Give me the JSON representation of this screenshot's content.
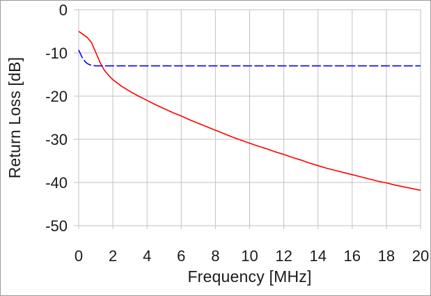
{
  "chart_data": {
    "type": "line",
    "title": "",
    "xlabel": "Frequency [MHz]",
    "ylabel": "Return Loss [dB]",
    "xlim": [
      0,
      20
    ],
    "ylim": [
      -50,
      0
    ],
    "x_ticks": [
      0,
      2,
      4,
      6,
      8,
      10,
      12,
      14,
      16,
      18,
      20
    ],
    "y_ticks": [
      0,
      -10,
      -20,
      -30,
      -40,
      -50
    ],
    "grid": true,
    "legend_position": "none",
    "series": [
      {
        "name": "red",
        "color": "#ff0000",
        "style": "solid",
        "points": [
          [
            0,
            -5.0
          ],
          [
            0.25,
            -5.7
          ],
          [
            0.5,
            -6.4
          ],
          [
            0.75,
            -7.6
          ],
          [
            1,
            -9.9
          ],
          [
            1.25,
            -12.2
          ],
          [
            1.5,
            -14.0
          ],
          [
            1.75,
            -15.2
          ],
          [
            2,
            -16.2
          ],
          [
            2.5,
            -17.7
          ],
          [
            3,
            -18.9
          ],
          [
            3.5,
            -20.0
          ],
          [
            4,
            -21.0
          ],
          [
            4.5,
            -22.0
          ],
          [
            5,
            -22.9
          ],
          [
            5.5,
            -23.8
          ],
          [
            6,
            -24.6
          ],
          [
            6.5,
            -25.5
          ],
          [
            7,
            -26.3
          ],
          [
            7.5,
            -27.1
          ],
          [
            8,
            -27.9
          ],
          [
            8.5,
            -28.7
          ],
          [
            9,
            -29.5
          ],
          [
            9.5,
            -30.2
          ],
          [
            10,
            -30.9
          ],
          [
            10.5,
            -31.6
          ],
          [
            11,
            -32.2
          ],
          [
            11.5,
            -32.9
          ],
          [
            12,
            -33.5
          ],
          [
            12.5,
            -34.2
          ],
          [
            13,
            -34.8
          ],
          [
            13.5,
            -35.5
          ],
          [
            14,
            -36.1
          ],
          [
            14.5,
            -36.7
          ],
          [
            15,
            -37.2
          ],
          [
            15.5,
            -37.7
          ],
          [
            16,
            -38.2
          ],
          [
            16.5,
            -38.7
          ],
          [
            17,
            -39.2
          ],
          [
            17.5,
            -39.7
          ],
          [
            18,
            -40.1
          ],
          [
            18.5,
            -40.6
          ],
          [
            19,
            -41.0
          ],
          [
            19.5,
            -41.4
          ],
          [
            20,
            -41.8
          ]
        ]
      },
      {
        "name": "blue",
        "color": "#0000ff",
        "style": "dashed",
        "points": [
          [
            0,
            -9.3
          ],
          [
            0.1,
            -10.2
          ],
          [
            0.2,
            -11.0
          ],
          [
            0.3,
            -11.6
          ],
          [
            0.4,
            -12.1
          ],
          [
            0.5,
            -12.45
          ],
          [
            0.6,
            -12.65
          ],
          [
            0.7,
            -12.8
          ],
          [
            0.8,
            -12.9
          ],
          [
            0.9,
            -12.95
          ],
          [
            1.0,
            -13.0
          ],
          [
            20,
            -13.0
          ]
        ]
      }
    ]
  },
  "colors": {
    "grid": "#c2c2c2",
    "frame": "#9a9a9a",
    "text": "#1a1a1a",
    "background": "#ffffff"
  }
}
